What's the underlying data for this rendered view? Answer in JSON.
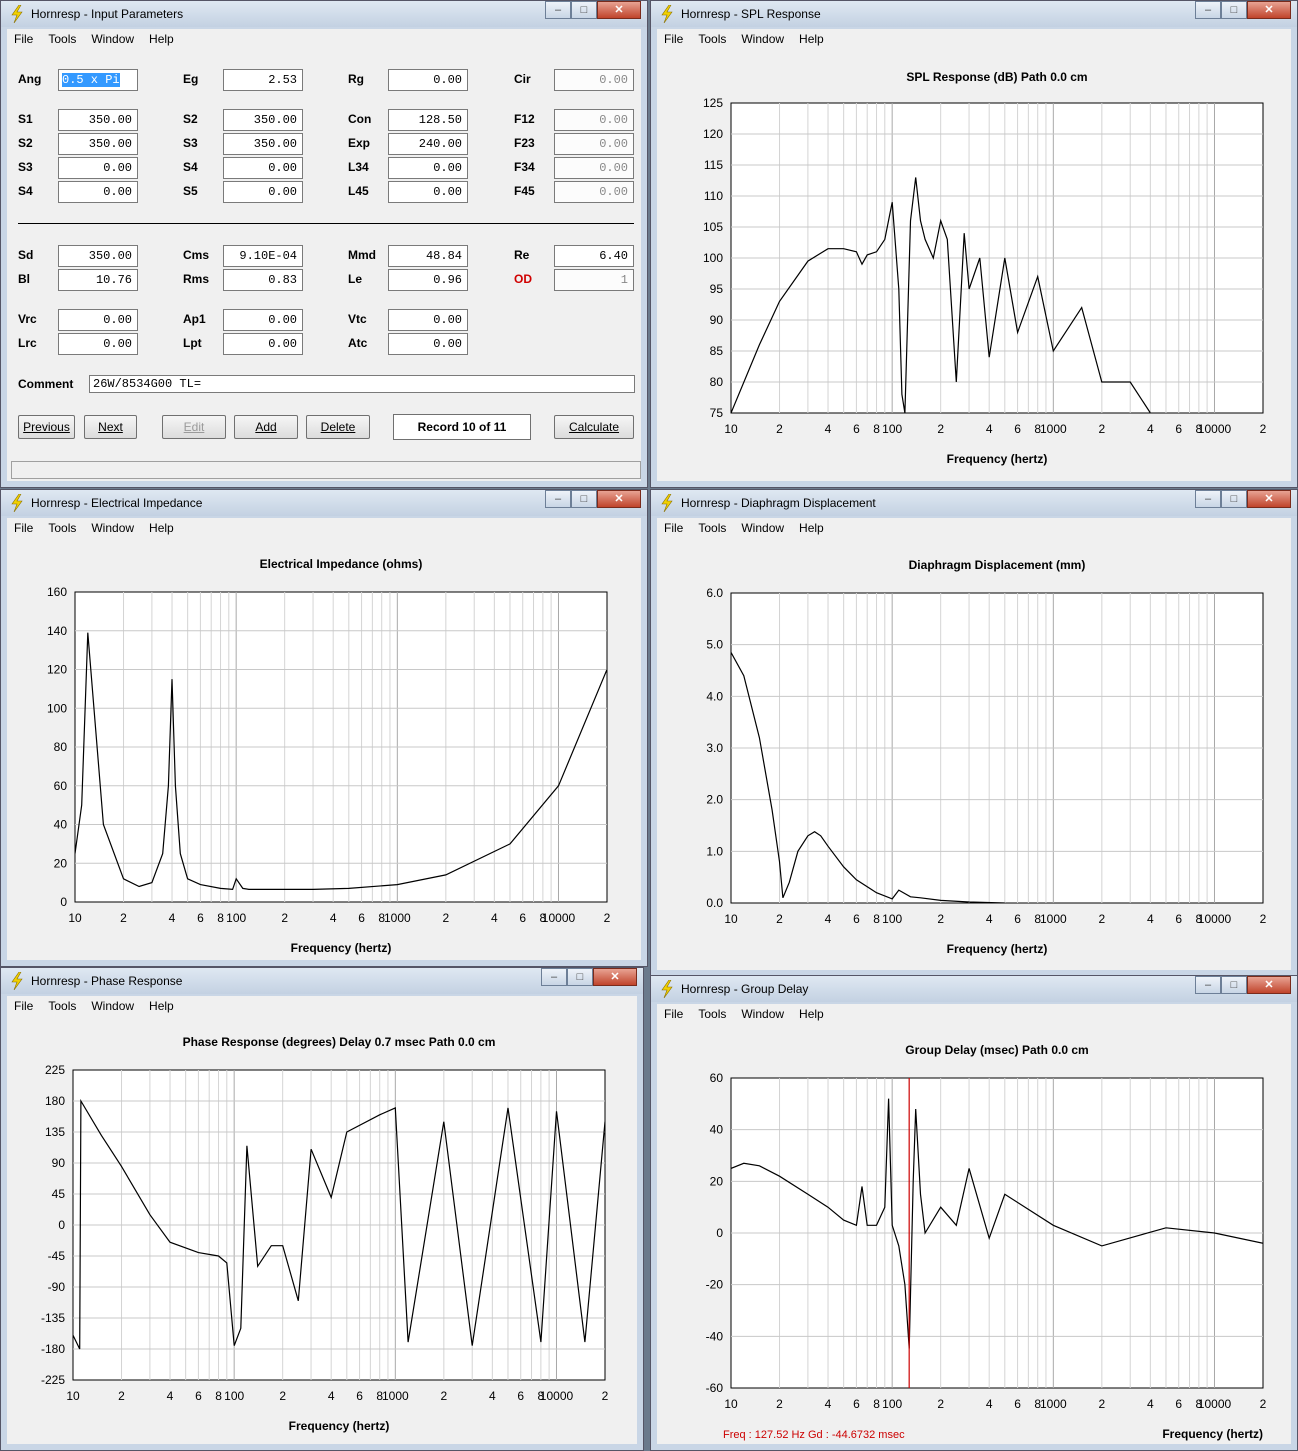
{
  "menus": [
    "File",
    "Tools",
    "Window",
    "Help"
  ],
  "window_buttons": {
    "minimize": "–",
    "maximize": "□",
    "close": "✕"
  },
  "input_params": {
    "title": "Hornresp - Input Parameters",
    "fields": [
      {
        "label": "Ang",
        "value": "0.5 x Pi",
        "state": "selected"
      },
      {
        "label": "Eg",
        "value": "2.53"
      },
      {
        "label": "Rg",
        "value": "0.00"
      },
      {
        "label": "Cir",
        "value": "0.00",
        "state": "disabled"
      },
      {
        "label": "S1",
        "value": "350.00"
      },
      {
        "label": "S2",
        "value": "350.00"
      },
      {
        "label": "Con",
        "value": "128.50"
      },
      {
        "label": "F12",
        "value": "0.00",
        "state": "disabled"
      },
      {
        "label": "S2",
        "value": "350.00"
      },
      {
        "label": "S3",
        "value": "350.00"
      },
      {
        "label": "Exp",
        "value": "240.00"
      },
      {
        "label": "F23",
        "value": "0.00",
        "state": "disabled"
      },
      {
        "label": "S3",
        "value": "0.00"
      },
      {
        "label": "S4",
        "value": "0.00"
      },
      {
        "label": "L34",
        "value": "0.00"
      },
      {
        "label": "F34",
        "value": "0.00",
        "state": "disabled"
      },
      {
        "label": "S4",
        "value": "0.00"
      },
      {
        "label": "S5",
        "value": "0.00"
      },
      {
        "label": "L45",
        "value": "0.00"
      },
      {
        "label": "F45",
        "value": "0.00",
        "state": "disabled"
      },
      {
        "label": "Sd",
        "value": "350.00"
      },
      {
        "label": "Cms",
        "value": "9.10E-04"
      },
      {
        "label": "Mmd",
        "value": "48.84"
      },
      {
        "label": "Re",
        "value": "6.40"
      },
      {
        "label": "Bl",
        "value": "10.76"
      },
      {
        "label": "Rms",
        "value": "0.83"
      },
      {
        "label": "Le",
        "value": "0.96"
      },
      {
        "label": "OD",
        "value": "1",
        "state": "disabled",
        "label_color": "#d00000"
      },
      {
        "label": "Vrc",
        "value": "0.00"
      },
      {
        "label": "Ap1",
        "value": "0.00"
      },
      {
        "label": "Vtc",
        "value": "0.00"
      },
      {
        "label": "Lrc",
        "value": "0.00"
      },
      {
        "label": "Lpt",
        "value": "0.00"
      },
      {
        "label": "Atc",
        "value": "0.00"
      }
    ],
    "comment_label": "Comment",
    "comment_value": "26W/8534G00 TL=",
    "buttons": {
      "previous": "Previous",
      "next": "Next",
      "edit": "Edit",
      "add": "Add",
      "delete": "Delete",
      "calculate": "Calculate"
    },
    "record": "Record 10 of 11"
  },
  "x_axis": {
    "ticks": [
      "10",
      "2",
      "4",
      "6",
      "8",
      "100",
      "2",
      "4",
      "6",
      "8",
      "1000",
      "2",
      "4",
      "6",
      "8",
      "10000",
      "2"
    ],
    "label": "Frequency (hertz)"
  },
  "charts": {
    "spl": {
      "window_title": "Hornresp - SPL Response",
      "title": "SPL Response (dB)   Path 0.0 cm",
      "yticks": [
        "125",
        "120",
        "115",
        "110",
        "105",
        "100",
        "95",
        "90",
        "85",
        "80",
        "75"
      ]
    },
    "imp": {
      "window_title": "Hornresp - Electrical Impedance",
      "title": "Electrical Impedance (ohms)",
      "yticks": [
        "160",
        "140",
        "120",
        "100",
        "80",
        "60",
        "40",
        "20",
        "0"
      ]
    },
    "disp": {
      "window_title": "Hornresp - Diaphragm Displacement",
      "title": "Diaphragm Displacement (mm)",
      "yticks": [
        "6.0",
        "5.0",
        "4.0",
        "3.0",
        "2.0",
        "1.0",
        "0.0"
      ]
    },
    "phase": {
      "window_title": "Hornresp - Phase Response",
      "title": "Phase Response (degrees)    Delay 0.7 msec    Path 0.0 cm",
      "yticks": [
        "225",
        "180",
        "135",
        "90",
        "45",
        "0",
        "-45",
        "-90",
        "-135",
        "-180",
        "-225"
      ]
    },
    "gd": {
      "window_title": "Hornresp - Group Delay",
      "title": "Group Delay (msec)   Path 0.0 cm",
      "yticks": [
        "60",
        "40",
        "20",
        "0",
        "-20",
        "-40",
        "-60"
      ],
      "readout": "Freq : 127.52 Hz     Gd : -44.6732 msec",
      "cursor_color": "#cc0000"
    }
  },
  "chart_data": [
    {
      "type": "line",
      "title": "SPL Response (dB)   Path 0.0 cm",
      "xlabel": "Frequency (hertz)",
      "ylabel": "",
      "xscale": "log",
      "xlim": [
        10,
        20000
      ],
      "ylim": [
        75,
        125
      ],
      "x": [
        10,
        15,
        20,
        30,
        40,
        50,
        60,
        65,
        70,
        80,
        90,
        100,
        110,
        115,
        120,
        130,
        140,
        150,
        160,
        180,
        200,
        220,
        250,
        280,
        300,
        350,
        400,
        500,
        600,
        800,
        1000,
        1500,
        2000,
        3000,
        4000
      ],
      "y": [
        75,
        86,
        93,
        99.5,
        101.5,
        101.5,
        101,
        99,
        100.5,
        101,
        103,
        109,
        95,
        78,
        75,
        106,
        113,
        106,
        103,
        100,
        106,
        103,
        80,
        104,
        95,
        100,
        84,
        100,
        88,
        97,
        85,
        92,
        80,
        80,
        75
      ]
    },
    {
      "type": "line",
      "title": "Electrical Impedance (ohms)",
      "xlabel": "Frequency (hertz)",
      "ylabel": "",
      "xscale": "log",
      "xlim": [
        10,
        20000
      ],
      "ylim": [
        0,
        160
      ],
      "x": [
        10,
        11,
        12,
        15,
        20,
        25,
        30,
        35,
        38,
        40,
        42,
        45,
        50,
        60,
        80,
        95,
        100,
        110,
        120,
        150,
        200,
        300,
        500,
        1000,
        2000,
        5000,
        10000,
        20000
      ],
      "y": [
        25,
        50,
        139,
        40,
        12,
        8,
        10,
        25,
        60,
        115,
        60,
        25,
        12,
        9,
        7,
        6.5,
        12,
        7,
        6.5,
        6.5,
        6.5,
        6.5,
        7,
        9,
        14,
        30,
        60,
        120
      ]
    },
    {
      "type": "line",
      "title": "Diaphragm Displacement (mm)",
      "xlabel": "Frequency (hertz)",
      "ylabel": "",
      "xscale": "log",
      "xlim": [
        10,
        20000
      ],
      "ylim": [
        0,
        6
      ],
      "x": [
        10,
        12,
        15,
        18,
        20,
        21,
        23,
        26,
        30,
        33,
        36,
        40,
        50,
        60,
        80,
        100,
        110,
        130,
        150,
        200,
        300,
        500
      ],
      "y": [
        4.85,
        4.4,
        3.2,
        1.8,
        0.8,
        0.1,
        0.4,
        1.0,
        1.3,
        1.38,
        1.3,
        1.1,
        0.7,
        0.45,
        0.2,
        0.08,
        0.25,
        0.12,
        0.1,
        0.05,
        0.02,
        0
      ]
    },
    {
      "type": "line",
      "title": "Phase Response (degrees)    Delay 0.7 msec    Path 0.0 cm",
      "xlabel": "Frequency (hertz)",
      "ylabel": "",
      "xscale": "log",
      "xlim": [
        10,
        20000
      ],
      "ylim": [
        -225,
        225
      ],
      "x": [
        10,
        11,
        11.2,
        15,
        20,
        30,
        40,
        60,
        80,
        90,
        100,
        110,
        120,
        140,
        170,
        200,
        250,
        300,
        400,
        500,
        800,
        1000,
        1200,
        2000,
        3000,
        5000,
        8000,
        10000,
        15000,
        20000
      ],
      "y": [
        -160,
        -180,
        180,
        130,
        85,
        15,
        -25,
        -40,
        -45,
        -55,
        -175,
        -150,
        115,
        -60,
        -30,
        -30,
        -110,
        110,
        40,
        135,
        160,
        170,
        -170,
        150,
        -175,
        170,
        -170,
        165,
        -170,
        150
      ]
    },
    {
      "type": "line",
      "title": "Group Delay (msec)   Path 0.0 cm",
      "xlabel": "Frequency (hertz)",
      "ylabel": "",
      "xscale": "log",
      "xlim": [
        10,
        20000
      ],
      "ylim": [
        -60,
        60
      ],
      "x": [
        10,
        12,
        15,
        20,
        30,
        40,
        50,
        60,
        65,
        70,
        80,
        90,
        95,
        100,
        110,
        120,
        127.52,
        135,
        140,
        150,
        160,
        200,
        250,
        300,
        400,
        500,
        1000,
        2000,
        5000,
        10000,
        20000
      ],
      "y": [
        25,
        27,
        26,
        22,
        15,
        10,
        5,
        3,
        18,
        3,
        3,
        10,
        52,
        3,
        -5,
        -20,
        -44.7,
        20,
        48,
        15,
        0,
        10,
        3,
        25,
        -2,
        15,
        3,
        -5,
        2,
        0,
        -4
      ]
    }
  ]
}
